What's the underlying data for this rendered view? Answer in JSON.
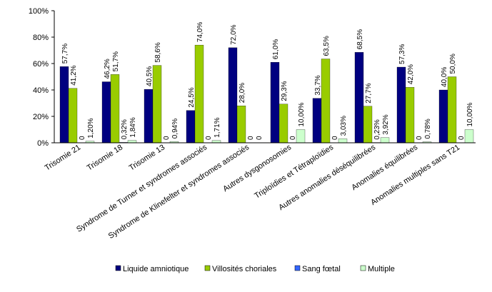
{
  "chart_data": {
    "type": "bar",
    "categories": [
      "Trisomie 21",
      "Trisomie 18",
      "Trisomie 13",
      "Syndrome de Turner et syndromes associés",
      "Syndrome de Klinefelter et syndromes associés",
      "Autres dysgonosomies",
      "Triploïdies et Tétraploïdies",
      "Autres anomalies déséquilibrées",
      "Anomalies équilibrées",
      "Anomalies multiples sans T21"
    ],
    "series": [
      {
        "name": "Liquide amniotique",
        "color": "#000080",
        "values": [
          57.7,
          46.2,
          40.5,
          24.5,
          72.0,
          61.0,
          33.7,
          68.5,
          57.3,
          40.0
        ],
        "labels": [
          "57,7%",
          "46,2%",
          "40,5%",
          "24,5%",
          "72,0%",
          "61,0%",
          "33,7%",
          "68,5%",
          "57,3%",
          "40,0%"
        ]
      },
      {
        "name": "Villosités choriales",
        "color": "#99cc00",
        "values": [
          41.2,
          51.7,
          58.6,
          74.0,
          28.0,
          29.3,
          63.5,
          27.7,
          42.0,
          50.0
        ],
        "labels": [
          "41,2%",
          "51,7%",
          "58,6%",
          "74,0%",
          "28,0%",
          "29,3%",
          "63,5%",
          "27,7%",
          "42,0%",
          "50,0%"
        ]
      },
      {
        "name": "Sang fœtal",
        "color": "#3366ff",
        "values": [
          0,
          0.32,
          0,
          0,
          0,
          0,
          0,
          0.23,
          0,
          0
        ],
        "labels": [
          "0",
          "0,32%",
          "0",
          "0",
          "0",
          "0",
          "0",
          "0,23%",
          "0",
          "0"
        ]
      },
      {
        "name": "Multiple",
        "color": "#ccffcc",
        "values": [
          1.2,
          1.84,
          0.94,
          1.71,
          null,
          10.0,
          3.03,
          3.92,
          0.78,
          10.0
        ],
        "labels": [
          "1,20%",
          "1,84%",
          "0,94%",
          "1,71%",
          "0",
          "10,00%",
          "3,03%",
          "3,92%",
          "0,78%",
          "10,00%"
        ]
      }
    ],
    "yticks": [
      "0%",
      "20%",
      "40%",
      "60%",
      "80%",
      "100%"
    ],
    "ylim": [
      0,
      100
    ],
    "legend_position": "bottom",
    "title": "",
    "xlabel": "",
    "ylabel": ""
  }
}
